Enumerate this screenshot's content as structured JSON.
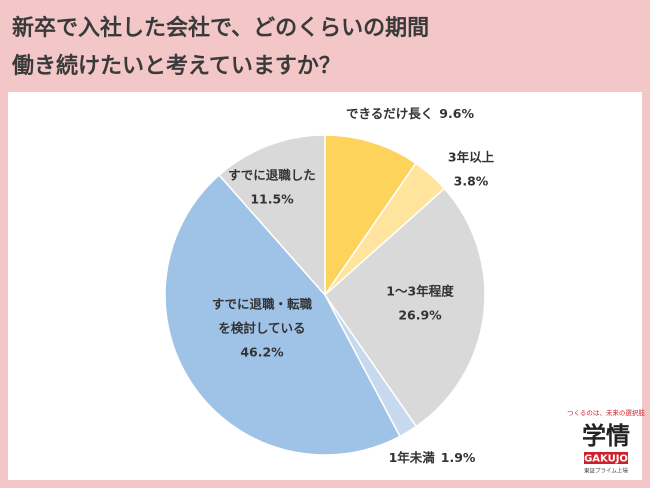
{
  "chart_data": {
    "type": "pie",
    "title": [
      "新卒で入社した会社で、どのくらいの期間",
      "働き続けたいと考えていますか？"
    ],
    "categories": [
      [
        "できるだけ長く"
      ],
      [
        "3年以上"
      ],
      [
        "1〜3年程度"
      ],
      [
        "1年未満"
      ],
      [
        "すでに退職・転職",
        "を検討している"
      ],
      [
        "すでに退職した"
      ]
    ],
    "values": [
      9.6,
      3.8,
      26.9,
      1.9,
      46.2,
      11.5
    ],
    "value_labels": [
      "9.6%",
      "3.8%",
      "26.9%",
      "1.9%",
      "46.2%",
      "11.5%"
    ],
    "colors": [
      "#fdd35c",
      "#fee49c",
      "#d9d9d9",
      "#c6d9ef",
      "#9fc3e7",
      "#d9d9d9"
    ]
  },
  "logo": {
    "tagline": "つくるのは、未来の選択肢",
    "name": "学情",
    "brand": "GAKUJO",
    "note": "東証プライム上場"
  }
}
